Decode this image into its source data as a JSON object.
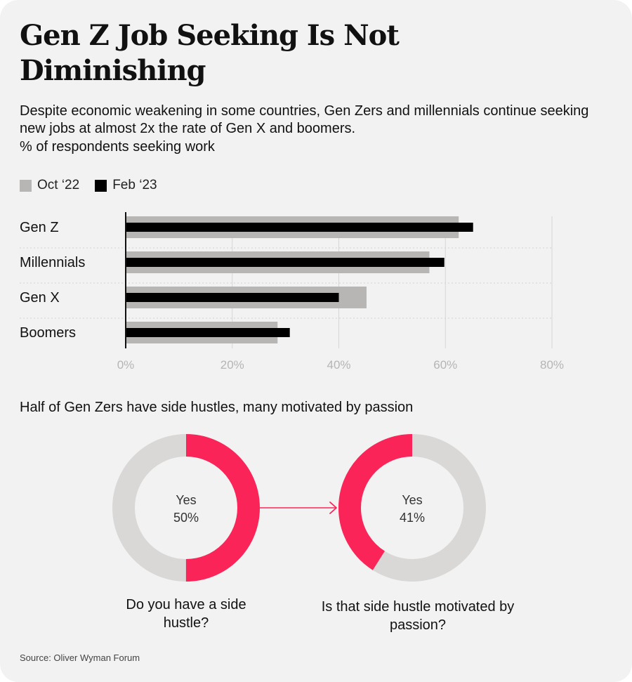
{
  "title": "Gen Z Job Seeking Is Not Diminishing",
  "subtitle": "Despite economic weakening in some countries, Gen Zers and millennials continue seeking new jobs at almost 2x the rate of Gen X and boomers.",
  "unit_label": "% of respondents seeking work",
  "legend": {
    "oct": "Oct ‘22",
    "feb": "Feb ‘23"
  },
  "colors": {
    "oct": "#b8b6b4",
    "feb": "#000000",
    "accent": "#fb2458",
    "donut_bg": "#d9d8d6",
    "grid": "#d6d6d6",
    "background": "#f2f2f2"
  },
  "section2_title": "Half of Gen Zers have side hustles, many motivated by passion",
  "questions": {
    "q1": "Do you have a side hustle?",
    "q2": "Is that side hustle motivated by passion?"
  },
  "source": "Source: Oliver Wyman Forum",
  "chart_data": [
    {
      "type": "bar",
      "orientation": "horizontal",
      "categories": [
        "Gen Z",
        "Millennials",
        "Gen X",
        "Boomers"
      ],
      "series": [
        {
          "name": "Oct ‘22",
          "values": [
            62.5,
            57,
            45.2,
            28.5
          ]
        },
        {
          "name": "Feb ‘23",
          "values": [
            65.2,
            59.8,
            40,
            30.8
          ]
        }
      ],
      "xlim": [
        0,
        80
      ],
      "ticks": [
        "0%",
        "20%",
        "40%",
        "60%",
        "80%"
      ],
      "grid": true,
      "legend": "top-left"
    },
    {
      "type": "pie",
      "label": "Yes",
      "value": 50,
      "value_label": "50%"
    },
    {
      "type": "pie",
      "label": "Yes",
      "value": 41,
      "value_label": "41%"
    }
  ]
}
